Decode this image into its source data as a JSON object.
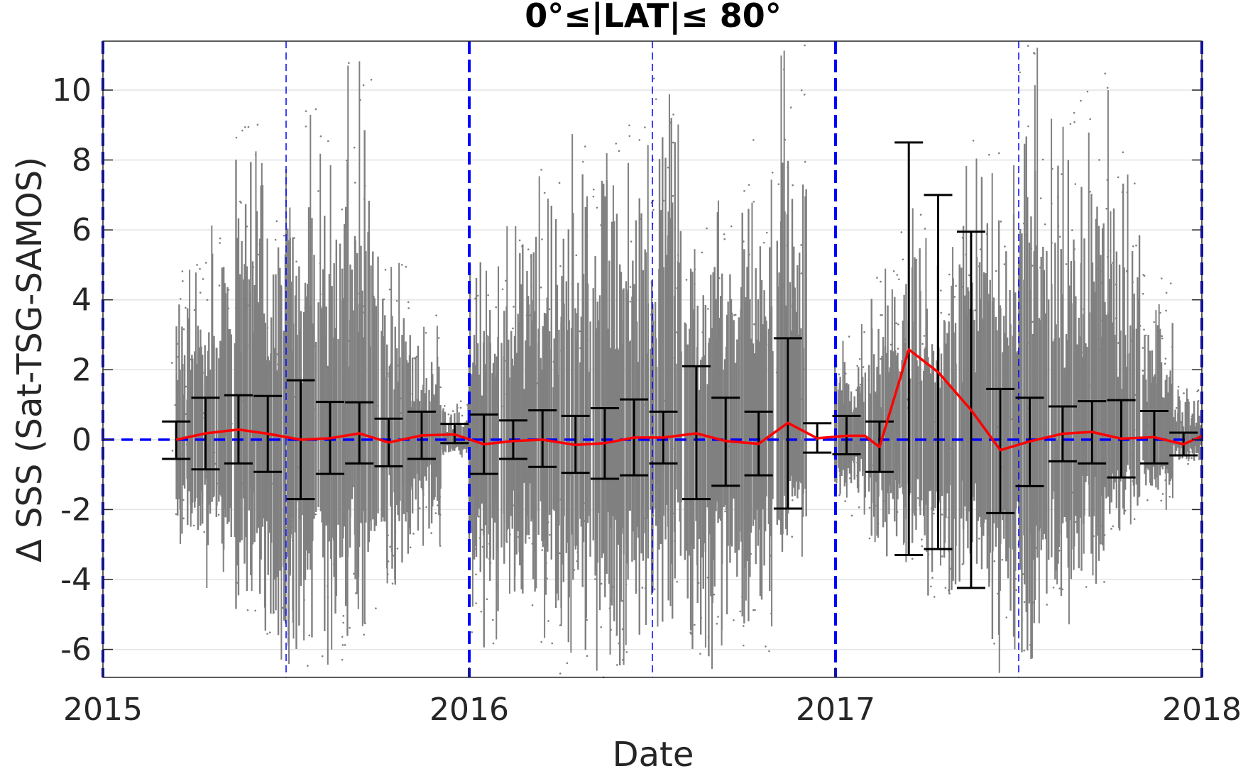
{
  "chart_data": {
    "type": "scatter",
    "title": "0°≤|LAT|≤ 80°",
    "xlabel": "Date",
    "ylabel": "Δ SSS (Sat-TSG-SAMOS)",
    "xlim": [
      2015.0,
      2018.0
    ],
    "ylim": [
      -6.8,
      11.4
    ],
    "x_ticks": [
      2015,
      2016,
      2017,
      2018
    ],
    "x_tick_labels": [
      "2015",
      "2016",
      "2017",
      "2018"
    ],
    "y_ticks": [
      -6,
      -4,
      -2,
      0,
      2,
      4,
      6,
      8,
      10
    ],
    "y_tick_labels": [
      "-6",
      "-4",
      "-2",
      "0",
      "2",
      "4",
      "6",
      "8",
      "10"
    ],
    "grid": "horizontal",
    "legend": "none",
    "colors": {
      "scatter": "#808080",
      "mean_line": "#ff0000",
      "error_bars": "#000000",
      "zero_line": "#0000ff",
      "year_lines": "#0000ff"
    },
    "year_boundaries": [
      2015.0,
      2016.0,
      2017.0,
      2018.0
    ],
    "half_year_lines": [
      2015.5,
      2016.5,
      2017.5
    ],
    "zero_reference": 0,
    "series": [
      {
        "type": "scatter",
        "description_of_density": "dense gray SSS difference points, envelope per month",
        "envelope": [
          {
            "x": 2015.23,
            "low": -3.2,
            "high": 5.0
          },
          {
            "x": 2015.31,
            "low": -4.3,
            "high": 6.4
          },
          {
            "x": 2015.4,
            "low": -5.4,
            "high": 9.1
          },
          {
            "x": 2015.48,
            "low": -6.8,
            "high": 7.0
          },
          {
            "x": 2015.54,
            "low": -6.6,
            "high": 9.7
          },
          {
            "x": 2015.63,
            "low": -6.6,
            "high": 9.2
          },
          {
            "x": 2015.71,
            "low": -6.3,
            "high": 10.9
          },
          {
            "x": 2015.8,
            "low": -4.4,
            "high": 5.2
          },
          {
            "x": 2015.88,
            "low": -3.3,
            "high": 3.6
          },
          {
            "x": 2015.96,
            "low": -0.6,
            "high": 1.1
          },
          {
            "x": 2016.04,
            "low": -6.0,
            "high": 6.4
          },
          {
            "x": 2016.13,
            "low": -5.0,
            "high": 6.4
          },
          {
            "x": 2016.21,
            "low": -5.9,
            "high": 8.1
          },
          {
            "x": 2016.29,
            "low": -6.7,
            "high": 9.0
          },
          {
            "x": 2016.38,
            "low": -6.8,
            "high": 9.3
          },
          {
            "x": 2016.46,
            "low": -6.6,
            "high": 9.8
          },
          {
            "x": 2016.54,
            "low": -5.6,
            "high": 11.3
          },
          {
            "x": 2016.63,
            "low": -6.8,
            "high": 6.1
          },
          {
            "x": 2016.71,
            "low": -5.9,
            "high": 7.2
          },
          {
            "x": 2016.79,
            "low": -6.1,
            "high": 8.6
          },
          {
            "x": 2016.88,
            "low": -3.4,
            "high": 11.3
          },
          {
            "x": 2017.04,
            "low": -2.2,
            "high": 3.5
          },
          {
            "x": 2017.13,
            "low": -3.4,
            "high": 5.0
          },
          {
            "x": 2017.21,
            "low": -3.7,
            "high": 6.8
          },
          {
            "x": 2017.29,
            "low": -4.6,
            "high": 5.6
          },
          {
            "x": 2017.38,
            "low": -4.7,
            "high": 8.8
          },
          {
            "x": 2017.46,
            "low": -6.8,
            "high": 8.3
          },
          {
            "x": 2017.54,
            "low": -6.8,
            "high": 11.3
          },
          {
            "x": 2017.63,
            "low": -5.4,
            "high": 9.4
          },
          {
            "x": 2017.71,
            "low": -4.3,
            "high": 11.2
          },
          {
            "x": 2017.79,
            "low": -2.8,
            "high": 8.4
          },
          {
            "x": 2017.88,
            "low": -2.1,
            "high": 4.8
          },
          {
            "x": 2017.96,
            "low": -0.7,
            "high": 1.6
          }
        ]
      },
      {
        "type": "line",
        "points": [
          [
            2015.2,
            0.0
          ],
          [
            2015.28,
            0.18
          ],
          [
            2015.37,
            0.29
          ],
          [
            2015.45,
            0.17
          ],
          [
            2015.54,
            0.0
          ],
          [
            2015.62,
            0.04
          ],
          [
            2015.7,
            0.18
          ],
          [
            2015.78,
            -0.08
          ],
          [
            2015.87,
            0.12
          ],
          [
            2015.96,
            0.15
          ],
          [
            2016.04,
            -0.13
          ],
          [
            2016.12,
            -0.04
          ],
          [
            2016.2,
            0.0
          ],
          [
            2016.29,
            -0.15
          ],
          [
            2016.37,
            -0.1
          ],
          [
            2016.45,
            0.06
          ],
          [
            2016.53,
            0.06
          ],
          [
            2016.62,
            0.18
          ],
          [
            2016.7,
            -0.04
          ],
          [
            2016.79,
            -0.12
          ],
          [
            2016.87,
            0.48
          ],
          [
            2016.95,
            0.04
          ],
          [
            2017.03,
            0.11
          ],
          [
            2017.08,
            0.11
          ],
          [
            2017.12,
            -0.21
          ],
          [
            2017.2,
            2.58
          ],
          [
            2017.28,
            1.93
          ],
          [
            2017.37,
            0.85
          ],
          [
            2017.45,
            -0.3
          ],
          [
            2017.53,
            -0.05
          ],
          [
            2017.62,
            0.17
          ],
          [
            2017.7,
            0.22
          ],
          [
            2017.78,
            0.03
          ],
          [
            2017.87,
            0.07
          ],
          [
            2017.95,
            -0.13
          ],
          [
            2018.0,
            0.1
          ]
        ]
      },
      {
        "type": "errorbar",
        "bars": [
          [
            2015.2,
            -0.55,
            0.52
          ],
          [
            2015.28,
            -0.85,
            1.2
          ],
          [
            2015.37,
            -0.68,
            1.27
          ],
          [
            2015.45,
            -0.92,
            1.25
          ],
          [
            2015.54,
            -1.7,
            1.7
          ],
          [
            2015.62,
            -0.98,
            1.08
          ],
          [
            2015.7,
            -0.68,
            1.07
          ],
          [
            2015.78,
            -0.76,
            0.6
          ],
          [
            2015.87,
            -0.55,
            0.8
          ],
          [
            2015.96,
            -0.1,
            0.45
          ],
          [
            2016.04,
            -0.98,
            0.72
          ],
          [
            2016.12,
            -0.55,
            0.55
          ],
          [
            2016.2,
            -0.78,
            0.84
          ],
          [
            2016.29,
            -0.95,
            0.68
          ],
          [
            2016.37,
            -1.12,
            0.9
          ],
          [
            2016.45,
            -1.02,
            1.15
          ],
          [
            2016.53,
            -0.68,
            0.8
          ],
          [
            2016.62,
            -1.7,
            2.1
          ],
          [
            2016.7,
            -1.32,
            1.2
          ],
          [
            2016.79,
            -1.02,
            0.8
          ],
          [
            2016.87,
            -1.97,
            2.9
          ],
          [
            2016.95,
            -0.37,
            0.47
          ],
          [
            2017.03,
            -0.42,
            0.68
          ],
          [
            2017.12,
            -0.92,
            0.52
          ],
          [
            2017.2,
            -3.3,
            8.5
          ],
          [
            2017.28,
            -3.13,
            7.0
          ],
          [
            2017.37,
            -4.24,
            5.95
          ],
          [
            2017.45,
            -2.1,
            1.45
          ],
          [
            2017.53,
            -1.33,
            1.2
          ],
          [
            2017.62,
            -0.62,
            0.95
          ],
          [
            2017.7,
            -0.68,
            1.1
          ],
          [
            2017.78,
            -1.08,
            1.13
          ],
          [
            2017.87,
            -0.68,
            0.82
          ],
          [
            2017.95,
            -0.45,
            0.2
          ]
        ]
      }
    ]
  }
}
